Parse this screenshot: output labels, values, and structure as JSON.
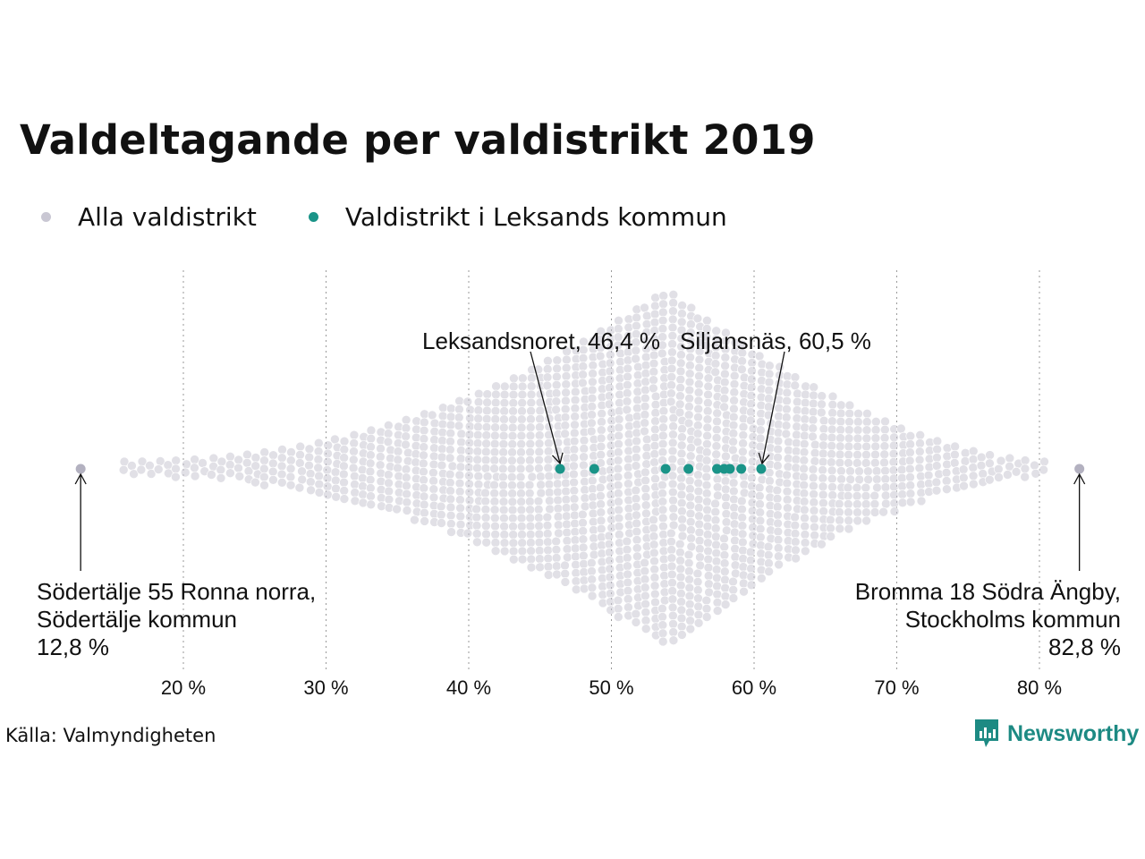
{
  "header": {
    "title": "Valdeltagande per valdistrikt 2019"
  },
  "legend": [
    {
      "label": "Alla valdistrikt",
      "color": "#c9c7d3"
    },
    {
      "label": "Valdistrikt i Leksands kommun",
      "color": "#1a9488"
    }
  ],
  "chart_data": {
    "type": "scatter",
    "title": "Valdeltagande per valdistrikt 2019",
    "xlabel": "",
    "ylabel": "",
    "xlim": [
      9.5,
      84.5
    ],
    "x_ticks": [
      "20 %",
      "30 %",
      "40 %",
      "50 %",
      "60 %",
      "70 %",
      "80 %"
    ],
    "x_tick_values": [
      20,
      30,
      40,
      50,
      60,
      70,
      80
    ],
    "grid": "vertical dotted",
    "series": [
      {
        "name": "Alla valdistrikt",
        "color": "#c9c7d3",
        "distribution": "beeswarm of all districts, densest near 53 %",
        "extremes": [
          12.8,
          82.8
        ]
      },
      {
        "name": "Valdistrikt i Leksands kommun",
        "color": "#1a9488",
        "x": [
          46.4,
          48.8,
          53.8,
          55.4,
          57.4,
          57.9,
          58.3,
          59.1,
          60.5
        ]
      }
    ],
    "annotations": [
      {
        "x": 12.8,
        "lines": [
          "Södertälje 55 Ronna norra,",
          "Södertälje kommun",
          "12,8 %"
        ]
      },
      {
        "x": 82.8,
        "lines": [
          "Bromma 18 Södra Ängby,",
          "Stockholms kommun",
          "82,8 %"
        ]
      },
      {
        "x": 46.4,
        "lines": [
          "Leksandsnoret, 46,4 %"
        ]
      },
      {
        "x": 60.5,
        "lines": [
          "Siljansnäs, 60,5 %"
        ]
      }
    ]
  },
  "footer": {
    "source": "Källa: Valmyndigheten",
    "brand": "Newsworthy"
  },
  "colors": {
    "accent": "#1a9488",
    "muted": "#c9c7d3",
    "brand": "#1d8a83",
    "text": "#111111"
  }
}
